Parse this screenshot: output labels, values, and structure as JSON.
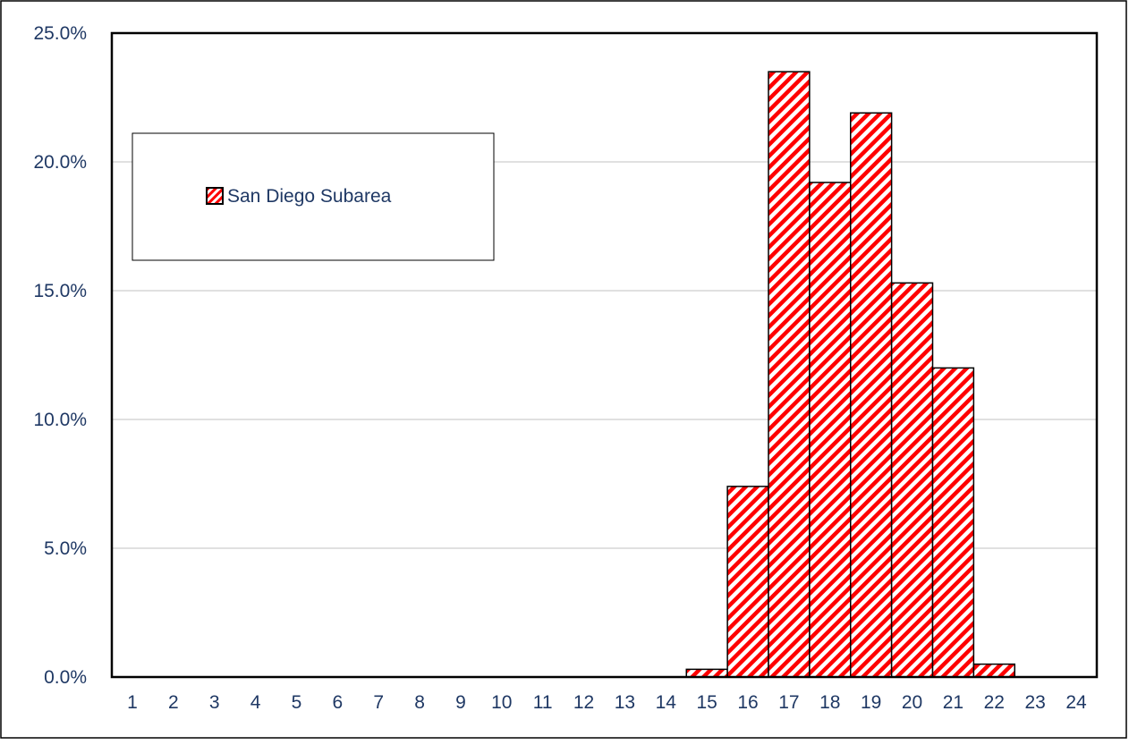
{
  "chart_data": {
    "type": "bar",
    "categories": [
      "1",
      "2",
      "3",
      "4",
      "5",
      "6",
      "7",
      "8",
      "9",
      "10",
      "11",
      "12",
      "13",
      "14",
      "15",
      "16",
      "17",
      "18",
      "19",
      "20",
      "21",
      "22",
      "23",
      "24"
    ],
    "series": [
      {
        "name": "San Diego Subarea",
        "values": [
          0,
          0,
          0,
          0,
          0,
          0,
          0,
          0,
          0,
          0,
          0,
          0,
          0,
          0,
          0.3,
          7.4,
          23.5,
          19.2,
          21.9,
          15.3,
          12.0,
          0.5,
          0,
          0
        ]
      }
    ],
    "y_unit": "%",
    "ylim": [
      0,
      25
    ],
    "yticks": [
      "0.0%",
      "5.0%",
      "10.0%",
      "15.0%",
      "20.0%",
      "25.0%"
    ],
    "grid": true,
    "legend_position": "upper-left",
    "colors": {
      "bar_fill": "#ff0000",
      "bar_hatch_bg": "#ffffff",
      "bar_stroke": "#000000",
      "axis_text": "#1f3864",
      "grid": "#c0c0c0"
    }
  }
}
